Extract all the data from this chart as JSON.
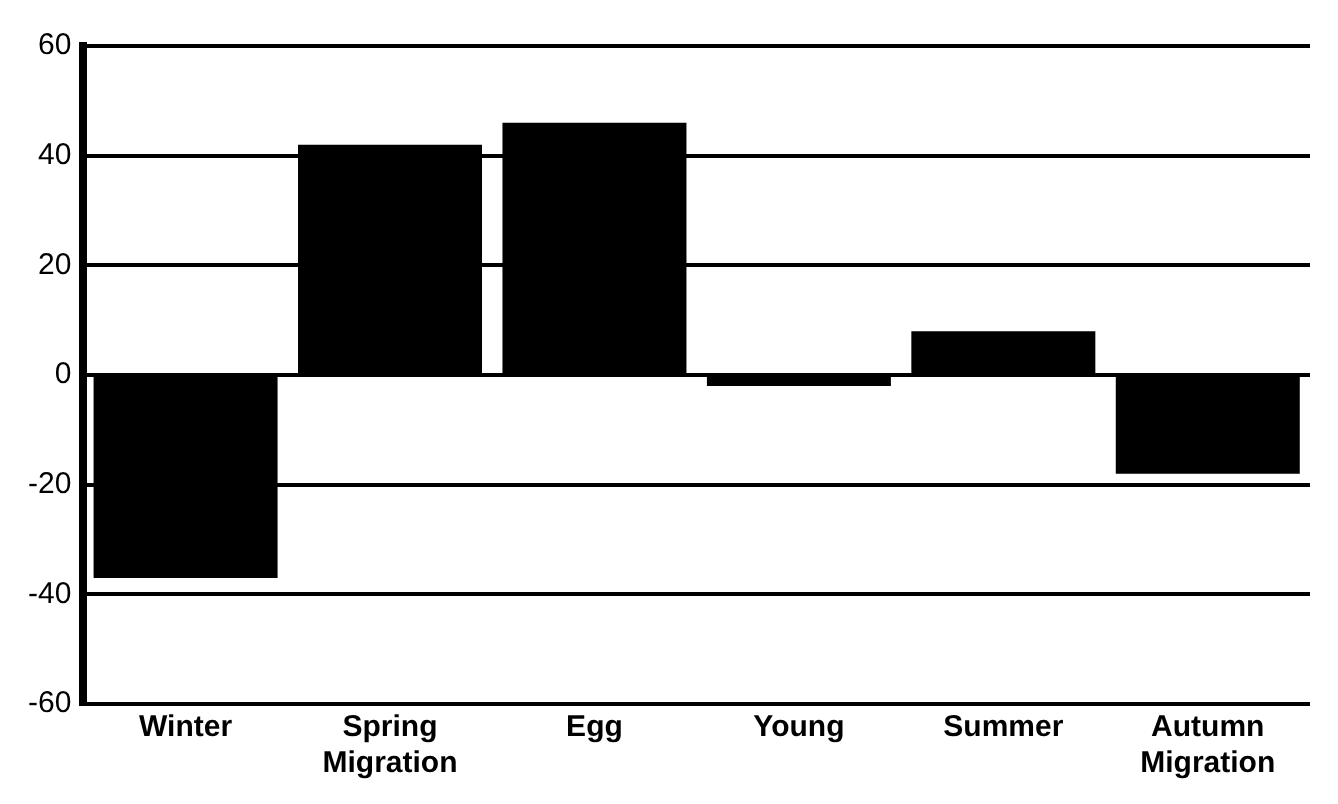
{
  "chart_data": {
    "type": "bar",
    "categories": [
      "Winter",
      "Spring Migration",
      "Egg",
      "Young",
      "Summer",
      "Autumn Migration"
    ],
    "values": [
      -37,
      42,
      46,
      -2,
      8,
      -18
    ],
    "color": "#000000",
    "ylim": [
      -60,
      60
    ],
    "yticks": [
      -60,
      -40,
      -20,
      0,
      20,
      40,
      60
    ],
    "grid": "y"
  }
}
